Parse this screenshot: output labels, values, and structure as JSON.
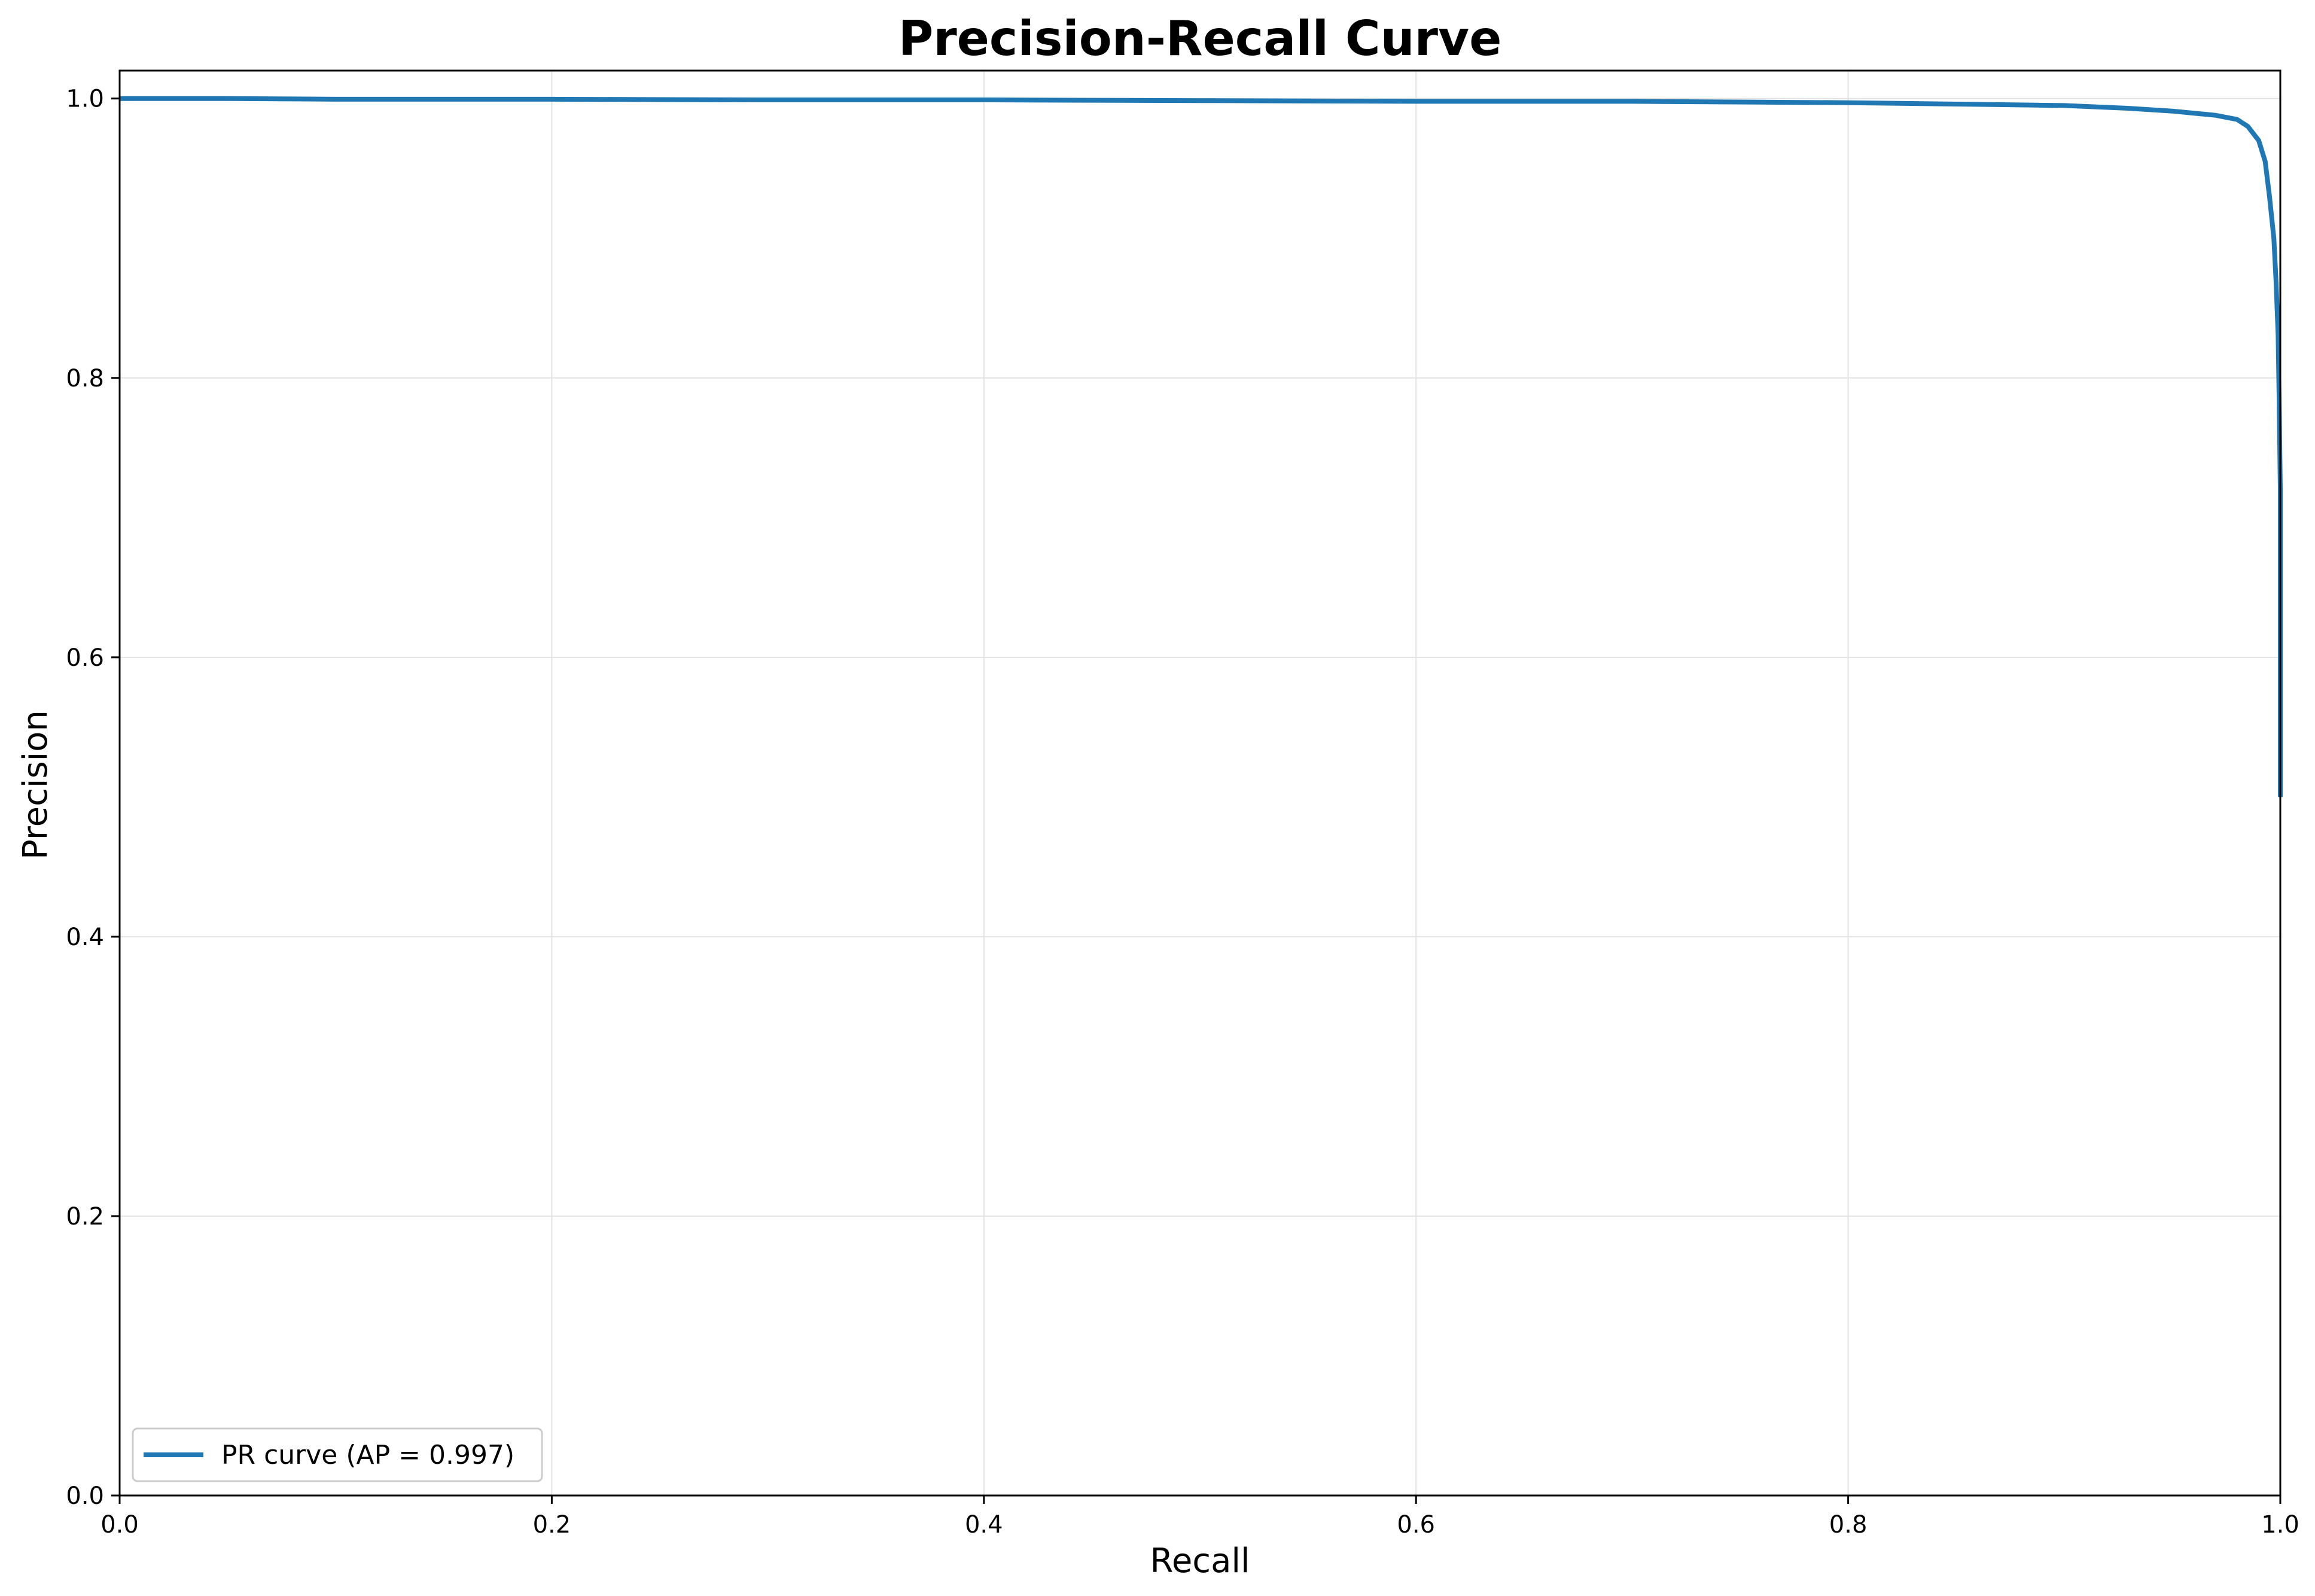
{
  "chart_data": {
    "type": "line",
    "title": "Precision-Recall Curve",
    "xlabel": "Recall",
    "ylabel": "Precision",
    "xlim": [
      0.0,
      1.0
    ],
    "ylim": [
      0.0,
      1.02
    ],
    "xticks": [
      "0.0",
      "0.2",
      "0.4",
      "0.6",
      "0.8",
      "1.0"
    ],
    "yticks": [
      "0.0",
      "0.2",
      "0.4",
      "0.6",
      "0.8",
      "1.0"
    ],
    "grid": true,
    "legend_position": "lower-left",
    "series": [
      {
        "name": "PR curve (AP = 0.997)",
        "color": "#1f77b4",
        "x": [
          0.0,
          0.05,
          0.1,
          0.2,
          0.3,
          0.4,
          0.5,
          0.6,
          0.7,
          0.8,
          0.85,
          0.9,
          0.93,
          0.95,
          0.97,
          0.98,
          0.985,
          0.99,
          0.993,
          0.995,
          0.997,
          0.998,
          0.999,
          0.9995,
          1.0,
          1.0,
          1.0
        ],
        "y": [
          1.0,
          1.0,
          0.9995,
          0.9995,
          0.999,
          0.999,
          0.9985,
          0.998,
          0.998,
          0.997,
          0.996,
          0.995,
          0.993,
          0.991,
          0.988,
          0.985,
          0.98,
          0.97,
          0.955,
          0.93,
          0.9,
          0.87,
          0.83,
          0.78,
          0.72,
          0.6,
          0.5
        ]
      }
    ]
  }
}
